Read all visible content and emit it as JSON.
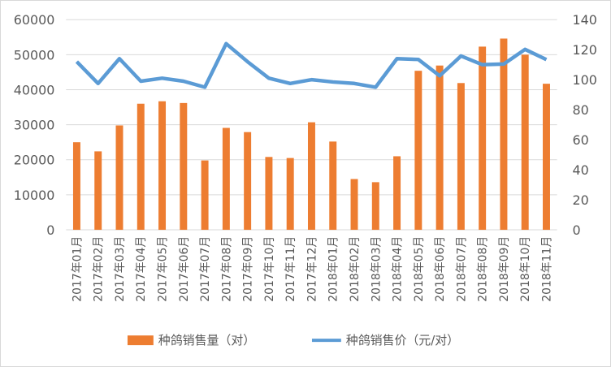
{
  "chart_data": {
    "type": "bar",
    "title": "",
    "categories": [
      "2017年01月",
      "2017年02月",
      "2017年03月",
      "2017年04月",
      "2017年05月",
      "2017年06月",
      "2017年07月",
      "2017年08月",
      "2017年09月",
      "2017年10月",
      "2017年11月",
      "2017年12月",
      "2018年01月",
      "2018年02月",
      "2018年03月",
      "2018年04月",
      "2018年05月",
      "2018年06月",
      "2018年07月",
      "2018年08月",
      "2018年09月",
      "2018年10月",
      "2018年11月"
    ],
    "series": [
      {
        "name": "种鸽销售量（对）",
        "type": "bar",
        "axis": "left",
        "color": "#ED7D31",
        "values": [
          25000,
          22400,
          29800,
          36000,
          36700,
          36200,
          19800,
          29100,
          27900,
          20800,
          20500,
          30700,
          25200,
          14500,
          13600,
          21000,
          45400,
          46900,
          41900,
          52300,
          54600,
          50000,
          41700
        ]
      },
      {
        "name": "种鸽销售价（元/对）",
        "type": "line",
        "axis": "right",
        "color": "#5B9BD5",
        "values": [
          112,
          97.5,
          114,
          99,
          101,
          99,
          95,
          124,
          112,
          101,
          97.5,
          100,
          98.5,
          97.5,
          95,
          114,
          113.5,
          102.6,
          115.8,
          110,
          110.4,
          120.2,
          113.4
        ]
      }
    ],
    "y_left": {
      "lim": [
        0,
        60000
      ],
      "ticks": [
        "0",
        "10000",
        "20000",
        "30000",
        "40000",
        "50000",
        "60000"
      ]
    },
    "y_right": {
      "lim": [
        0,
        140
      ],
      "ticks": [
        "0",
        "20",
        "40",
        "60",
        "80",
        "100",
        "120",
        "140"
      ]
    },
    "grid": true,
    "legend": "bottom"
  }
}
